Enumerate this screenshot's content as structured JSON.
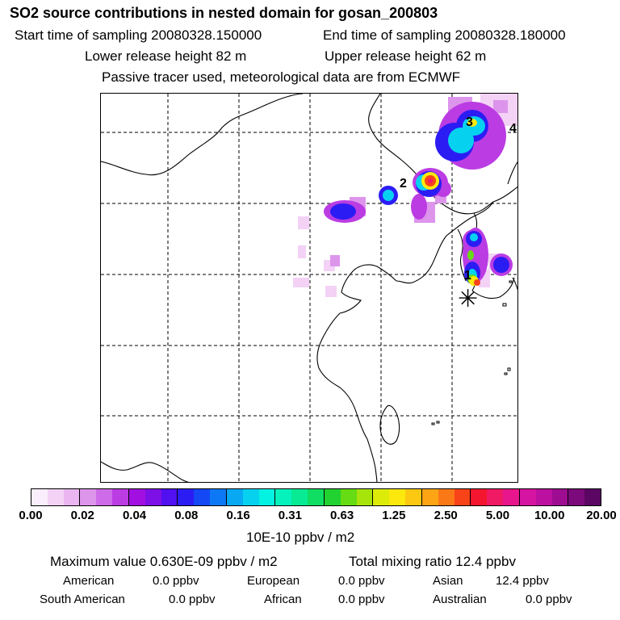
{
  "header": {
    "title": "SO2 source contributions in nested domain for gosan_200803",
    "start_time": "Start time of sampling 20080328.150000",
    "end_time": "End time of sampling 20080328.180000",
    "lower_height": "Lower release height   82 m",
    "upper_height": "Upper release height   62 m",
    "tracer_note": "Passive tracer used, meteorological data are from ECMWF"
  },
  "map": {
    "markers": [
      "1",
      "2",
      "3",
      "4"
    ],
    "receptor_symbol": "✳"
  },
  "colorbar": {
    "colors": [
      "#fbeefc",
      "#f3d2f6",
      "#eab5f1",
      "#dd95ec",
      "#ce6be8",
      "#bb3ce3",
      "#a110e0",
      "#7d10e6",
      "#5010f0",
      "#2c1cf4",
      "#1448f5",
      "#0c78f5",
      "#08a8f3",
      "#06d2f0",
      "#04f2e2",
      "#06f2bc",
      "#08ea94",
      "#10de62",
      "#22d230",
      "#66dc14",
      "#a6e40c",
      "#dcec08",
      "#fce80c",
      "#fcc812",
      "#fca414",
      "#fb7816",
      "#f84218",
      "#f4162e",
      "#f01a64",
      "#e8168c",
      "#d614a2",
      "#bc10a0",
      "#9e0c92",
      "#7c0a7c",
      "#5a0662"
    ],
    "tick_labels": [
      "0.00",
      "0.02",
      "0.04",
      "0.08",
      "0.16",
      "0.31",
      "0.63",
      "1.25",
      "2.50",
      "5.00",
      "10.00",
      "20.00"
    ],
    "units": "10E-10 ppbv / m2"
  },
  "stats": {
    "max_value": "Maximum value  0.630E-09 ppbv / m2",
    "total": "Total mixing ratio      12.4 ppbv",
    "american_label": "American",
    "american_value": "0.0 ppbv",
    "european_label": "European",
    "european_value": "0.0 ppbv",
    "asian_label": "Asian",
    "asian_value": "12.4 ppbv",
    "south_american_label": "South American",
    "south_american_value": "0.0 ppbv",
    "african_label": "African",
    "african_value": "0.0 ppbv",
    "australian_label": "Australian",
    "australian_value": "0.0 ppbv"
  }
}
